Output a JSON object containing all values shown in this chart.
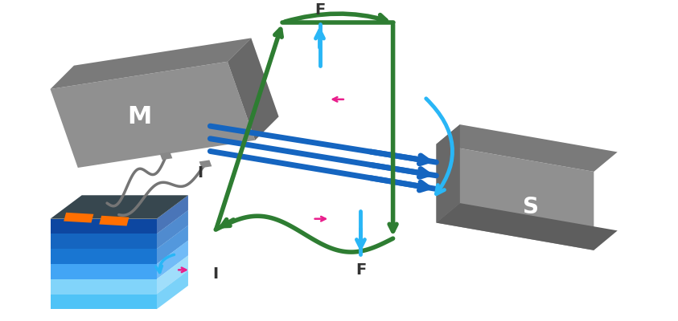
{
  "bg_color": "#ffffff",
  "magnet_M_front": "#909090",
  "magnet_M_top": "#7a7a7a",
  "magnet_M_side": "#686868",
  "magnet_S_front": "#909090",
  "magnet_S_top": "#7a7a7a",
  "magnet_S_side": "#686868",
  "blue_field_color": "#1565C0",
  "green_loop_color": "#2E7D32",
  "green_loop_color2": "#1B5E20",
  "force_arrow_color": "#29B6F6",
  "pink_arrow_color": "#E91E8C",
  "gray_wire_color": "#757575",
  "battery_layers": [
    "#0D47A1",
    "#1565C0",
    "#1976D2",
    "#42A5F5",
    "#81D4FA",
    "#4FC3F7"
  ],
  "battery_top_color": "#37474F",
  "battery_side_color": "#263238",
  "battery_clip_color": "#FF6F00",
  "force_label": "F",
  "current_label": "I",
  "magnet_label_M": "M",
  "magnet_label_S": "S",
  "label_fontsize": 16,
  "fi_fontsize": 14
}
